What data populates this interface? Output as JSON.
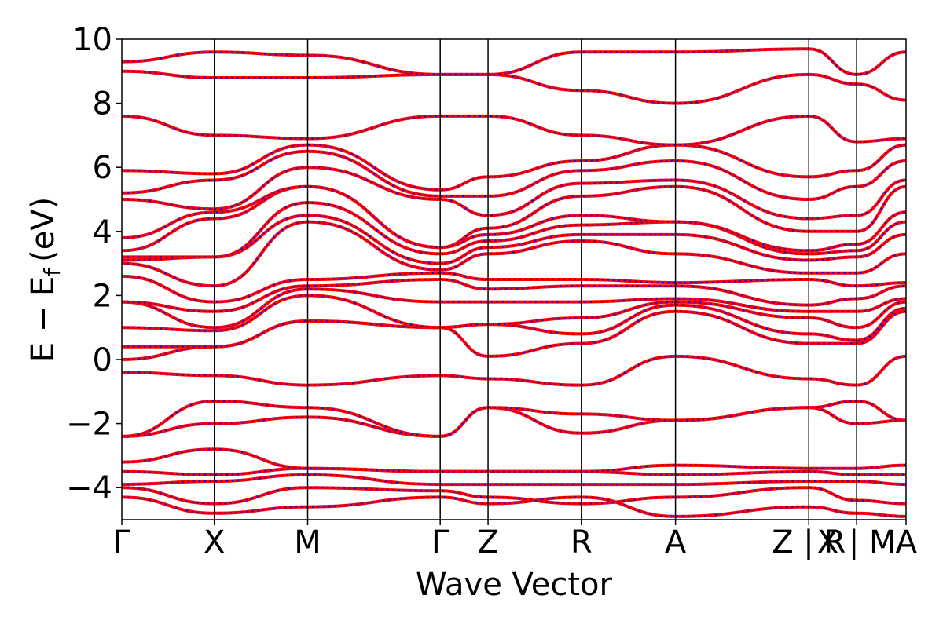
{
  "chart_data": {
    "type": "line",
    "title": "",
    "xlabel": "Wave Vector",
    "ylabel": "E − E",
    "ylabel_subscript": "f",
    "ylabel_unit": "(eV)",
    "ylim": [
      -5,
      10
    ],
    "y_ticks": [
      -4,
      -2,
      0,
      2,
      4,
      6,
      8,
      10
    ],
    "y_tick_labels": [
      "−4",
      "−2",
      "0",
      "2",
      "4",
      "6",
      "8",
      "10"
    ],
    "x_range": [
      0,
      1
    ],
    "kpoints": [
      {
        "label": "Γ",
        "x": 0.0
      },
      {
        "label": "X",
        "x": 0.118
      },
      {
        "label": "M",
        "x": 0.237
      },
      {
        "label": "Γ",
        "x": 0.406
      },
      {
        "label": "Z",
        "x": 0.467
      },
      {
        "label": "R",
        "x": 0.586
      },
      {
        "label": "A",
        "x": 0.706
      },
      {
        "label": "Z | R",
        "x": 0.876
      },
      {
        "label": "X | M",
        "x": 0.937
      },
      {
        "label": "A",
        "x": 1.0
      }
    ],
    "grid": false,
    "series": [
      {
        "color": "#ff0000",
        "style": "solid",
        "bands_at_kpoints": [
          [
            -4.3,
            -4.8,
            -4.6,
            -4.3,
            -4.5,
            -4.3,
            -4.9,
            -4.6,
            -4.8,
            -4.9
          ],
          [
            -4.0,
            -4.5,
            -4.0,
            -4.1,
            -4.3,
            -4.5,
            -4.3,
            -4.0,
            -4.4,
            -4.5
          ],
          [
            -3.9,
            -3.8,
            -3.6,
            -3.9,
            -3.9,
            -3.9,
            -3.9,
            -3.8,
            -3.8,
            -3.9
          ],
          [
            -3.5,
            -3.6,
            -3.4,
            -3.5,
            -3.5,
            -3.5,
            -3.6,
            -3.5,
            -3.6,
            -3.6
          ],
          [
            -3.2,
            -2.8,
            -3.4,
            -3.5,
            -3.5,
            -3.5,
            -3.3,
            -3.4,
            -3.4,
            -3.3
          ],
          [
            -2.4,
            -2.0,
            -1.8,
            -2.4,
            -1.5,
            -2.3,
            -1.9,
            -1.5,
            -2.0,
            -1.9
          ],
          [
            -2.4,
            -1.3,
            -1.5,
            -2.4,
            -1.5,
            -1.7,
            -1.9,
            -1.5,
            -1.3,
            -1.9
          ],
          [
            -0.4,
            -0.5,
            -0.8,
            -0.5,
            -0.6,
            -0.8,
            0.1,
            -0.6,
            -0.8,
            0.1
          ],
          [
            0.0,
            0.4,
            1.2,
            1.0,
            0.1,
            0.5,
            1.5,
            0.5,
            0.5,
            1.5
          ],
          [
            0.4,
            0.4,
            1.2,
            1.0,
            1.1,
            0.8,
            1.7,
            0.8,
            0.6,
            1.6
          ],
          [
            1.0,
            0.9,
            2.0,
            1.0,
            1.1,
            1.3,
            1.8,
            1.3,
            1.0,
            1.8
          ],
          [
            1.8,
            1.0,
            2.2,
            1.8,
            1.8,
            1.8,
            1.9,
            1.5,
            1.5,
            1.9
          ],
          [
            1.8,
            1.5,
            2.3,
            2.5,
            2.2,
            2.3,
            2.3,
            1.7,
            1.9,
            2.3
          ],
          [
            2.6,
            1.8,
            2.5,
            2.7,
            2.5,
            2.5,
            2.4,
            2.5,
            2.3,
            2.4
          ],
          [
            3.0,
            2.3,
            4.3,
            2.8,
            3.3,
            3.7,
            3.3,
            2.7,
            2.7,
            3.3
          ],
          [
            3.1,
            3.2,
            4.5,
            3.0,
            3.5,
            3.9,
            3.9,
            3.1,
            3.2,
            3.9
          ],
          [
            3.2,
            3.2,
            4.9,
            3.3,
            3.7,
            4.2,
            4.3,
            3.3,
            3.4,
            4.3
          ],
          [
            3.4,
            4.4,
            5.4,
            3.5,
            3.9,
            4.5,
            4.3,
            3.4,
            3.6,
            4.6
          ],
          [
            3.8,
            4.6,
            5.4,
            3.5,
            4.1,
            5.1,
            5.4,
            4.0,
            4.0,
            5.4
          ],
          [
            5.0,
            4.7,
            6.0,
            5.0,
            4.5,
            5.5,
            5.6,
            4.4,
            4.5,
            5.6
          ],
          [
            5.2,
            5.6,
            6.5,
            5.1,
            5.1,
            5.9,
            6.2,
            5.0,
            5.4,
            6.2
          ],
          [
            5.9,
            5.8,
            6.7,
            5.3,
            5.7,
            6.2,
            6.7,
            5.7,
            5.9,
            6.7
          ],
          [
            7.6,
            7.0,
            6.9,
            7.6,
            7.6,
            7.0,
            6.7,
            7.6,
            6.8,
            6.9
          ],
          [
            9.0,
            8.8,
            8.8,
            8.9,
            8.9,
            8.4,
            8.0,
            8.9,
            8.6,
            8.1
          ],
          [
            9.3,
            9.6,
            9.5,
            8.9,
            8.9,
            9.6,
            9.6,
            9.7,
            8.9,
            9.6
          ]
        ]
      },
      {
        "color": "#0000ff",
        "style": "dotted",
        "bands_at_kpoints": "same as solid (bands overlap)"
      }
    ]
  }
}
